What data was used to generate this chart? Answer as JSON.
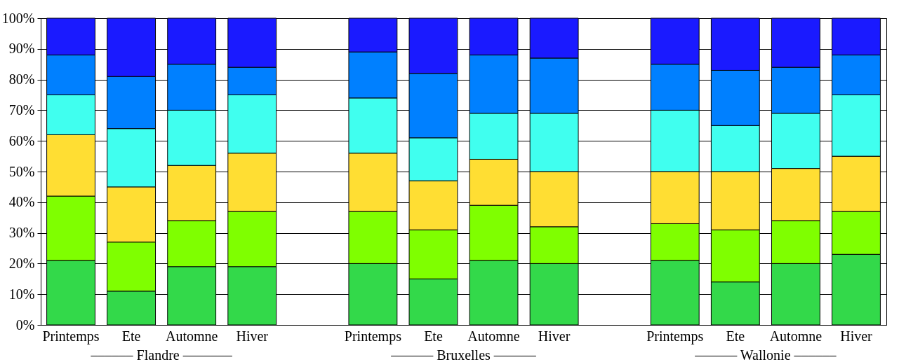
{
  "chart_data": {
    "type": "bar",
    "stacked": true,
    "categories": [
      "Printemps",
      "Ete",
      "Automne",
      "Hiver",
      null,
      "Printemps",
      "Ete",
      "Automne",
      "Hiver",
      null,
      "Printemps",
      "Ete",
      "Automne",
      "Hiver"
    ],
    "series": [
      {
        "color": "#33d94a",
        "values": [
          21,
          11,
          19,
          19,
          null,
          20,
          15,
          21,
          20,
          null,
          21,
          14,
          20,
          23
        ]
      },
      {
        "color": "#7fff00",
        "values": [
          21,
          16,
          15,
          18,
          null,
          17,
          16,
          18,
          12,
          null,
          12,
          17,
          14,
          14
        ]
      },
      {
        "color": "#ffde33",
        "values": [
          20,
          18,
          18,
          19,
          null,
          19,
          16,
          15,
          18,
          null,
          17,
          19,
          17,
          18
        ]
      },
      {
        "color": "#40ffef",
        "values": [
          13,
          19,
          18,
          19,
          null,
          18,
          14,
          15,
          19,
          null,
          20,
          15,
          18,
          20
        ]
      },
      {
        "color": "#0080ff",
        "values": [
          13,
          17,
          15,
          9,
          null,
          15,
          21,
          19,
          18,
          null,
          15,
          18,
          15,
          13
        ]
      },
      {
        "color": "#1a1aff",
        "values": [
          12,
          19,
          15,
          16,
          null,
          11,
          18,
          12,
          13,
          null,
          15,
          17,
          16,
          12
        ]
      }
    ],
    "ylim": [
      0,
      100
    ],
    "yticks": [
      {
        "value": 0,
        "label": "0%"
      },
      {
        "value": 10,
        "label": "10%"
      },
      {
        "value": 20,
        "label": "20%"
      },
      {
        "value": 30,
        "label": "30%"
      },
      {
        "value": 40,
        "label": "40%"
      },
      {
        "value": 50,
        "label": "50%"
      },
      {
        "value": 60,
        "label": "60%"
      },
      {
        "value": 70,
        "label": "70%"
      },
      {
        "value": 80,
        "label": "80%"
      },
      {
        "value": 90,
        "label": "90%"
      },
      {
        "value": 100,
        "label": "100%"
      }
    ],
    "grid": "y",
    "annotations": [
      "–––––– Flandre –––––––",
      "–––––– Bruxelles ––––––",
      "–––––– Wallonie ––––––"
    ]
  }
}
